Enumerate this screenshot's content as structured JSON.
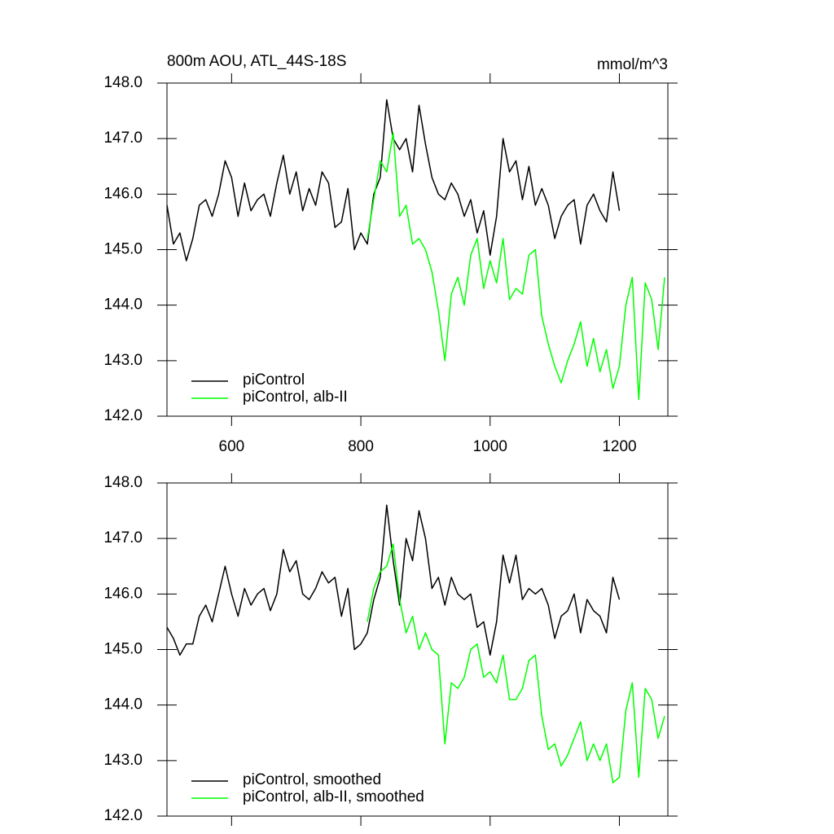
{
  "chart_data": [
    {
      "type": "line",
      "title": "800m AOU, ATL_44S-18S",
      "units": "mmol/m^3",
      "xlim": [
        500,
        1275
      ],
      "ylim": [
        142,
        148
      ],
      "xticks": [
        600,
        800,
        1000,
        1200
      ],
      "yticks": [
        {
          "value": 142,
          "label": "142.0"
        },
        {
          "value": 143,
          "label": "143.0"
        },
        {
          "value": 144,
          "label": "144.0"
        },
        {
          "value": 145,
          "label": "145.0"
        },
        {
          "value": 146,
          "label": "146.0"
        },
        {
          "value": 147,
          "label": "147.0"
        },
        {
          "value": 148,
          "label": "148.0"
        }
      ],
      "legend": "lower left",
      "series": [
        {
          "name": "piControl",
          "color": "#000000",
          "x": [
            500,
            510,
            520,
            530,
            540,
            550,
            560,
            570,
            580,
            590,
            600,
            610,
            620,
            630,
            640,
            650,
            660,
            670,
            680,
            690,
            700,
            710,
            720,
            730,
            740,
            750,
            760,
            770,
            780,
            790,
            800,
            810,
            820,
            830,
            840,
            850,
            860,
            870,
            880,
            890,
            900,
            910,
            920,
            930,
            940,
            950,
            960,
            970,
            980,
            990,
            1000,
            1010,
            1020,
            1030,
            1040,
            1050,
            1060,
            1070,
            1080,
            1090,
            1100,
            1110,
            1120,
            1130,
            1140,
            1150,
            1160,
            1170,
            1180,
            1190,
            1200
          ],
          "values": [
            145.8,
            145.1,
            145.3,
            144.8,
            145.2,
            145.8,
            145.9,
            145.6,
            146.0,
            146.6,
            146.3,
            145.6,
            146.2,
            145.7,
            145.9,
            146.0,
            145.6,
            146.2,
            146.7,
            146.0,
            146.4,
            145.7,
            146.1,
            145.8,
            146.4,
            146.2,
            145.4,
            145.5,
            146.1,
            145.0,
            145.3,
            145.1,
            146.0,
            146.3,
            147.7,
            147.0,
            146.8,
            147.0,
            146.4,
            147.6,
            146.9,
            146.3,
            146.0,
            145.9,
            146.2,
            146.0,
            145.6,
            145.9,
            145.3,
            145.7,
            144.9,
            145.6,
            147.0,
            146.4,
            146.6,
            145.9,
            146.5,
            145.8,
            146.1,
            145.8,
            145.2,
            145.6,
            145.8,
            145.9,
            145.1,
            145.8,
            146.0,
            145.7,
            145.5,
            146.4,
            145.7
          ]
        },
        {
          "name": "piControl, alb-II",
          "color": "#00ff00",
          "x": [
            810,
            820,
            830,
            840,
            850,
            860,
            870,
            880,
            890,
            900,
            910,
            920,
            930,
            940,
            950,
            960,
            970,
            980,
            990,
            1000,
            1010,
            1020,
            1030,
            1040,
            1050,
            1060,
            1070,
            1080,
            1090,
            1100,
            1110,
            1120,
            1130,
            1140,
            1150,
            1160,
            1170,
            1180,
            1190,
            1200,
            1210,
            1220,
            1230,
            1240,
            1250,
            1260,
            1270
          ],
          "values": [
            145.2,
            145.9,
            146.6,
            146.4,
            147.1,
            145.6,
            145.8,
            145.1,
            145.2,
            145.0,
            144.6,
            143.9,
            143.0,
            144.2,
            144.5,
            144.0,
            144.9,
            145.2,
            144.3,
            144.8,
            144.4,
            145.2,
            144.1,
            144.3,
            144.2,
            144.9,
            145.0,
            143.8,
            143.3,
            142.9,
            142.6,
            143.0,
            143.3,
            143.7,
            142.9,
            143.4,
            142.8,
            143.2,
            142.5,
            142.9,
            144.0,
            144.5,
            142.3,
            144.4,
            144.1,
            143.2,
            144.5
          ]
        }
      ]
    },
    {
      "type": "line",
      "xlim": [
        500,
        1275
      ],
      "ylim": [
        142,
        148
      ],
      "xticks": [
        600,
        800,
        1000,
        1200
      ],
      "yticks": [
        {
          "value": 142,
          "label": "142.0"
        },
        {
          "value": 143,
          "label": "143.0"
        },
        {
          "value": 144,
          "label": "144.0"
        },
        {
          "value": 145,
          "label": "145.0"
        },
        {
          "value": 146,
          "label": "146.0"
        },
        {
          "value": 147,
          "label": "147.0"
        },
        {
          "value": 148,
          "label": "148.0"
        }
      ],
      "legend": "lower left",
      "series": [
        {
          "name": "piControl, smoothed",
          "color": "#000000",
          "x": [
            500,
            510,
            520,
            530,
            540,
            550,
            560,
            570,
            580,
            590,
            600,
            610,
            620,
            630,
            640,
            650,
            660,
            670,
            680,
            690,
            700,
            710,
            720,
            730,
            740,
            750,
            760,
            770,
            780,
            790,
            800,
            810,
            820,
            830,
            840,
            850,
            860,
            870,
            880,
            890,
            900,
            910,
            920,
            930,
            940,
            950,
            960,
            970,
            980,
            990,
            1000,
            1010,
            1020,
            1030,
            1040,
            1050,
            1060,
            1070,
            1080,
            1090,
            1100,
            1110,
            1120,
            1130,
            1140,
            1150,
            1160,
            1170,
            1180,
            1190,
            1200
          ],
          "values": [
            145.4,
            145.2,
            144.9,
            145.1,
            145.1,
            145.6,
            145.8,
            145.5,
            146.0,
            146.5,
            146.0,
            145.6,
            146.1,
            145.8,
            146.0,
            146.1,
            145.7,
            146.0,
            146.8,
            146.4,
            146.6,
            146.0,
            145.9,
            146.1,
            146.4,
            146.2,
            146.3,
            145.6,
            146.1,
            145.0,
            145.1,
            145.3,
            145.9,
            146.3,
            147.6,
            146.6,
            145.8,
            147.0,
            146.6,
            147.5,
            147.0,
            146.1,
            146.3,
            145.8,
            146.3,
            146.0,
            145.9,
            146.0,
            145.4,
            145.5,
            144.9,
            145.5,
            146.7,
            146.2,
            146.7,
            145.9,
            146.1,
            146.0,
            146.1,
            145.8,
            145.2,
            145.6,
            145.7,
            146.0,
            145.3,
            145.9,
            145.7,
            145.6,
            145.3,
            146.3,
            145.9
          ]
        },
        {
          "name": "piControl, alb-II, smoothed",
          "color": "#00ff00",
          "x": [
            810,
            820,
            830,
            840,
            850,
            860,
            870,
            880,
            890,
            900,
            910,
            920,
            930,
            940,
            950,
            960,
            970,
            980,
            990,
            1000,
            1010,
            1020,
            1030,
            1040,
            1050,
            1060,
            1070,
            1080,
            1090,
            1100,
            1110,
            1120,
            1130,
            1140,
            1150,
            1160,
            1170,
            1180,
            1190,
            1200,
            1210,
            1220,
            1230,
            1240,
            1250,
            1260,
            1270
          ],
          "values": [
            145.5,
            146.1,
            146.4,
            146.5,
            146.9,
            145.9,
            145.3,
            145.6,
            145.0,
            145.3,
            145.0,
            144.9,
            143.3,
            144.4,
            144.3,
            144.5,
            145.0,
            145.1,
            144.5,
            144.6,
            144.4,
            144.9,
            144.1,
            144.1,
            144.3,
            144.8,
            144.9,
            143.8,
            143.2,
            143.3,
            142.9,
            143.1,
            143.4,
            143.7,
            143.0,
            143.3,
            143.0,
            143.3,
            142.6,
            142.7,
            143.9,
            144.4,
            142.7,
            144.3,
            144.1,
            143.4,
            143.8
          ]
        }
      ]
    }
  ]
}
